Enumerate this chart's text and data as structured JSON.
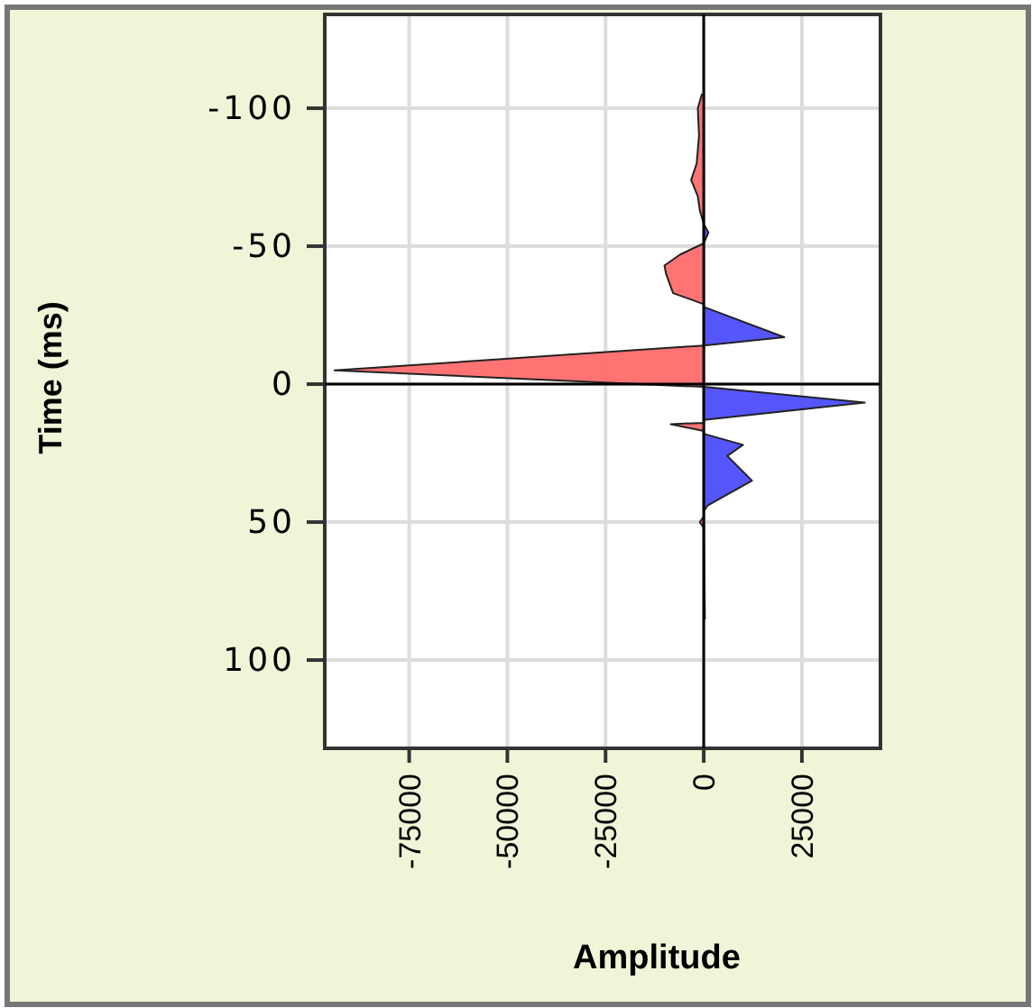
{
  "chart_data": {
    "type": "area",
    "orientation": "horizontal",
    "xlabel": "Amplitude",
    "ylabel": "Time (ms)",
    "xlim": [
      -96500,
      45000
    ],
    "xticks": [
      -75000,
      -50000,
      -25000,
      0,
      25000
    ],
    "ylim": [
      132,
      -134
    ],
    "yticks": [
      -100,
      -50,
      0,
      50,
      100
    ],
    "grid": true,
    "series": [
      {
        "color": "#ff6b6b",
        "x": [
          -105,
          -100,
          -90,
          -80,
          -74,
          -68,
          -63,
          -58,
          -51,
          -47,
          -43,
          -40,
          -33,
          -29,
          -14,
          -5,
          1,
          14,
          14.5,
          17,
          48,
          50,
          52
        ],
        "values": [
          -500,
          -1500,
          -1200,
          -1800,
          -3200,
          -1500,
          -1000,
          0,
          0,
          -6000,
          -10000,
          -9600,
          -7800,
          0,
          0,
          -94000,
          0,
          0,
          -8400,
          0,
          0,
          -1000,
          0
        ]
      },
      {
        "color": "#4d4dff",
        "x": [
          -58,
          -55,
          -51,
          -29,
          -28,
          -17,
          -14,
          1,
          6.7,
          13,
          18,
          22,
          26,
          35,
          44,
          46,
          85
        ],
        "values": [
          0,
          1200,
          0,
          0,
          0,
          20500,
          0,
          0,
          41000,
          0,
          0,
          10000,
          6000,
          12300,
          1000,
          0,
          300
        ]
      }
    ]
  }
}
